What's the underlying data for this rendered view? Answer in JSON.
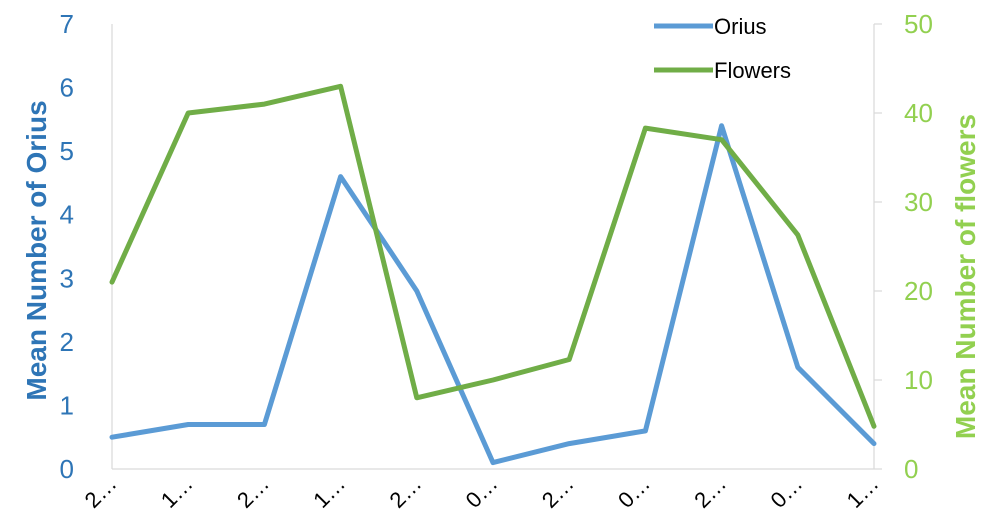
{
  "chart_data": {
    "type": "line",
    "categories": [
      "2…",
      "1…",
      "2…",
      "1…",
      "2…",
      "0…",
      "2…",
      "0…",
      "2…",
      "0…",
      "1…"
    ],
    "series": [
      {
        "name": "Orius",
        "axis": "left",
        "color": "#5b9bd5",
        "values": [
          0.5,
          0.7,
          0.7,
          4.6,
          2.8,
          0.1,
          0.4,
          0.6,
          5.4,
          1.6,
          0.4
        ]
      },
      {
        "name": "Flowers",
        "axis": "right",
        "color": "#70ad47",
        "values": [
          21,
          40,
          41,
          43,
          8,
          10,
          12.3,
          38.3,
          37,
          26.3,
          4.8
        ]
      }
    ],
    "ylabel": "Mean Number of Orius",
    "y2label": "Mean Number of  flowers",
    "ylim": [
      0,
      7
    ],
    "y2lim": [
      0,
      50
    ],
    "yticks": [
      0,
      1,
      2,
      3,
      4,
      5,
      6,
      7
    ],
    "y2ticks": [
      0,
      10,
      20,
      30,
      40,
      50
    ],
    "left_axis_color": "#2e75b6",
    "right_axis_color": "#92d050",
    "grid": false,
    "legend_position": "top-right"
  }
}
